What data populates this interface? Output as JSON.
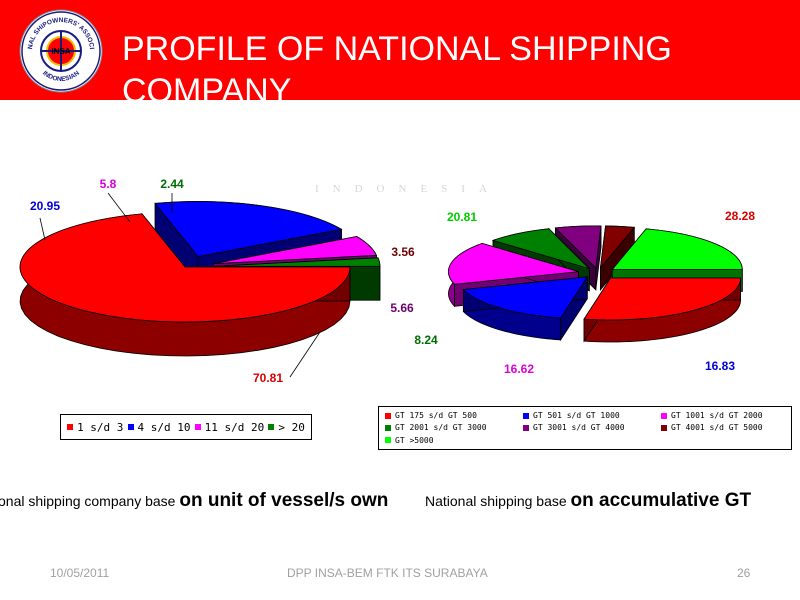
{
  "header": {
    "title": "PROFILE OF NATIONAL SHIPPING COMPANY",
    "logo_text": "NATIONAL SHIPOWNERS' ASSOCIATION INDONESIAN",
    "logo_center": "INSA"
  },
  "watermark": "INDONESIA",
  "chart_data": [
    {
      "type": "pie",
      "style": "3d-exploded",
      "labels": [
        "1 s/d 3",
        "4 s/d 10",
        "11 s/d 20",
        "> 20"
      ],
      "values": [
        70.81,
        20.95,
        5.8,
        2.44
      ],
      "value_labels": [
        "70.81",
        "20.95",
        "5.8",
        "2.44"
      ],
      "colors": [
        "#ff0000",
        "#0000ff",
        "#ff00ff",
        "#008000"
      ],
      "legend_position": "bottom"
    },
    {
      "type": "pie",
      "style": "3d-exploded",
      "labels": [
        "GT 175 s/d GT 500",
        "GT 501 s/d GT 1000",
        "GT 1001 s/d GT 2000",
        "GT 2001 s/d GT 3000",
        "GT 3001 s/d GT 4000",
        "GT 4001 s/d GT 5000",
        "GT >5000"
      ],
      "values": [
        28.28,
        16.83,
        16.62,
        8.24,
        5.66,
        3.56,
        20.81
      ],
      "value_labels": [
        "28.28",
        "16.83",
        "16.62",
        "8.24",
        "5.66",
        "3.56",
        "20.81"
      ],
      "colors": [
        "#ff0000",
        "#0000ff",
        "#ff00ff",
        "#008000",
        "#800080",
        "#800000",
        "#00ff00"
      ],
      "legend_position": "bottom"
    }
  ],
  "captions": {
    "left_normal": "onal shipping company base ",
    "left_bold": "on unit of vessel/s own",
    "right_normal": "National shipping base ",
    "right_bold": "on accumulative GT"
  },
  "footer": {
    "date": "10/05/2011",
    "center": "DPP INSA-BEM FTK ITS SURABAYA",
    "page": "26"
  }
}
